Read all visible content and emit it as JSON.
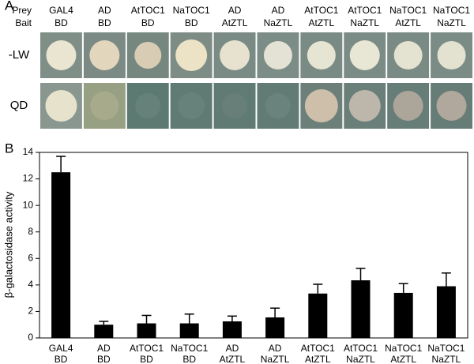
{
  "panel_a": {
    "label": "A",
    "prey_label": "Prey",
    "bait_label": "Bait",
    "columns": [
      [
        "GAL4",
        "BD"
      ],
      [
        "AD",
        "BD"
      ],
      [
        "AtTOC1",
        "BD"
      ],
      [
        "NaTOC1",
        "BD"
      ],
      [
        "AD",
        "AtZTL"
      ],
      [
        "AD",
        "NaZTL"
      ],
      [
        "AtTOC1",
        "AtZTL"
      ],
      [
        "AtTOC1",
        "NaZTL"
      ],
      [
        "NaTOC1",
        "AtZTL"
      ],
      [
        "NaTOC1",
        "NaZTL"
      ]
    ],
    "rows": [
      "-LW",
      "QD"
    ]
  },
  "chart_data": {
    "type": "bar",
    "panel_label": "B",
    "y_label": "β-galactosidase activity",
    "categories": [
      [
        "GAL4",
        "BD"
      ],
      [
        "AD",
        "BD"
      ],
      [
        "AtTOC1",
        "BD"
      ],
      [
        "NaTOC1",
        "BD"
      ],
      [
        "AD",
        "AtZTL"
      ],
      [
        "AD",
        "NaZTL"
      ],
      [
        "AtTOC1",
        "AtZTL"
      ],
      [
        "AtTOC1",
        "NaZTL"
      ],
      [
        "NaTOC1",
        "AtZTL"
      ],
      [
        "NaTOC1",
        "NaZTL"
      ]
    ],
    "values": [
      12.5,
      1.0,
      1.1,
      1.1,
      1.25,
      1.55,
      3.35,
      4.35,
      3.4,
      3.9
    ],
    "errors": [
      1.2,
      0.25,
      0.6,
      0.7,
      0.4,
      0.7,
      0.7,
      0.9,
      0.7,
      1.0
    ],
    "color": "#000000",
    "ylim": [
      0,
      14
    ],
    "yticks": [
      0,
      2,
      4,
      6,
      8,
      10,
      12,
      14
    ]
  }
}
